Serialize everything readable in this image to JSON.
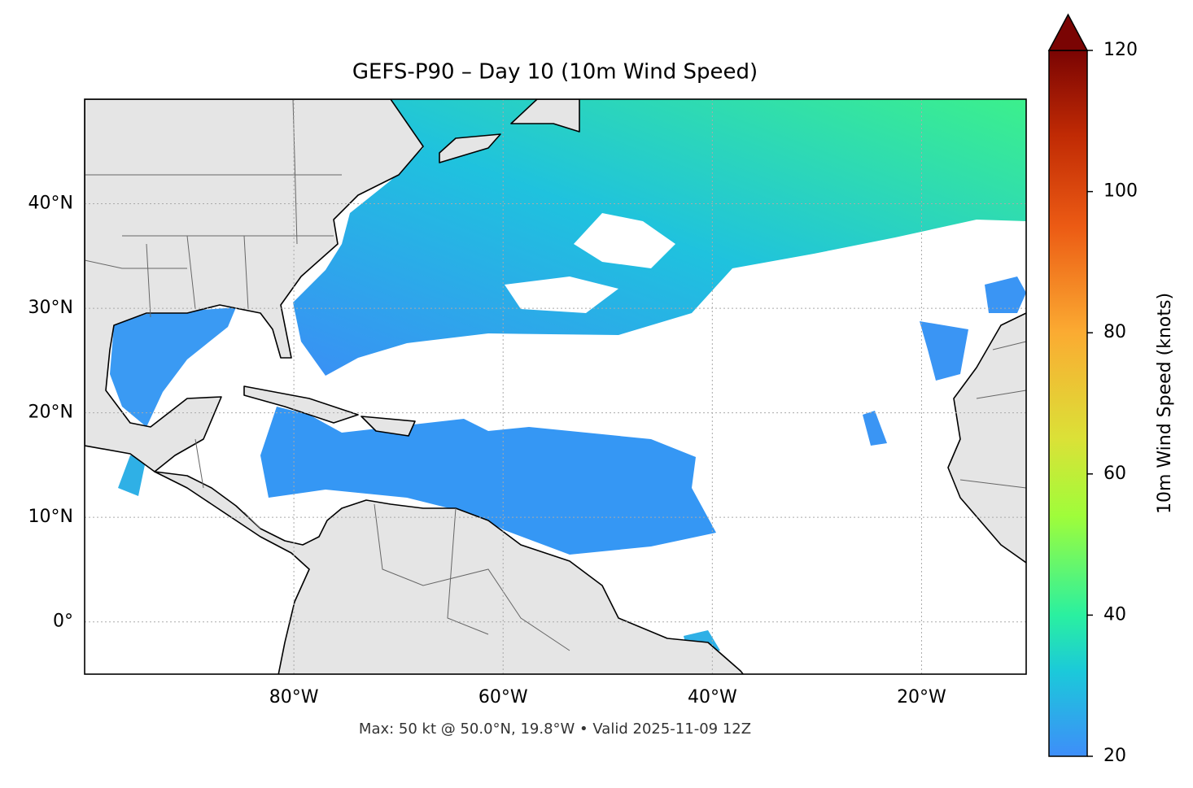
{
  "chart_data": {
    "type": "map",
    "title": "GEFS-P90 – Day 10 (10m Wind Speed)",
    "xlim": [
      -100,
      -10
    ],
    "ylim": [
      -5,
      50
    ],
    "xticks": [
      {
        "value": -80,
        "label": "80°W"
      },
      {
        "value": -60,
        "label": "60°W"
      },
      {
        "value": -40,
        "label": "40°W"
      },
      {
        "value": -20,
        "label": "20°W"
      }
    ],
    "yticks": [
      {
        "value": 0,
        "label": "0°"
      },
      {
        "value": 10,
        "label": "10°N"
      },
      {
        "value": 20,
        "label": "20°N"
      },
      {
        "value": 30,
        "label": "30°N"
      },
      {
        "value": 40,
        "label": "40°N"
      }
    ],
    "grid": true,
    "colorbar": {
      "label": "10m Wind Speed (knots)",
      "clim": [
        20,
        120
      ],
      "ticks": [
        20,
        40,
        60,
        80,
        100,
        120
      ],
      "extend": "max"
    },
    "annotation": "Max: 50 kt @ 50.0°N, 19.8°W • Valid 2025-11-09 12Z"
  }
}
